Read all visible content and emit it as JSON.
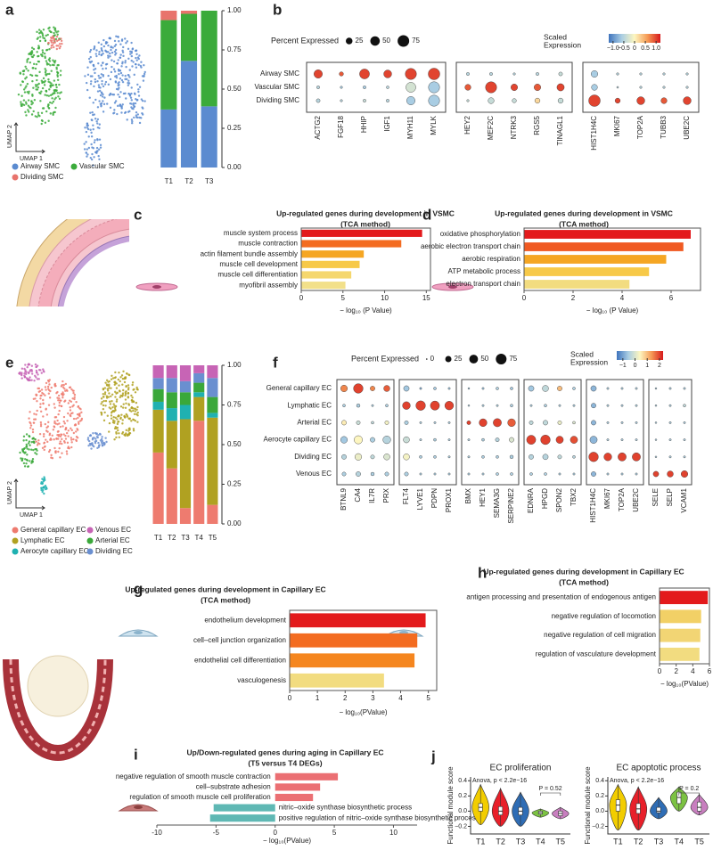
{
  "panel_labels": [
    "a",
    "b",
    "c",
    "d",
    "e",
    "f",
    "g",
    "h",
    "i",
    "j"
  ],
  "umaps": [
    {
      "xlabel": "UMAP 1",
      "ylabel": "UMAP 2",
      "legend": [
        {
          "name": "Airway SMC",
          "color": "#5b8bd0"
        },
        {
          "name": "Vascular SMC",
          "color": "#3bab3b"
        },
        {
          "name": "Dividing SMC",
          "color": "#e8736c"
        }
      ]
    },
    {
      "xlabel": "UMAP 1",
      "ylabel": "UMAP 2",
      "legend": [
        {
          "name": "General capillary EC",
          "color": "#ee7b6f"
        },
        {
          "name": "Venous EC",
          "color": "#c764b5"
        },
        {
          "name": "Lymphatic EC",
          "color": "#b0a121"
        },
        {
          "name": "Arterial EC",
          "color": "#3aa83a"
        },
        {
          "name": "Aerocyte capillary EC",
          "color": "#1fb1b1"
        },
        {
          "name": "Dividing EC",
          "color": "#6a8fd0"
        }
      ]
    }
  ],
  "chart_data": [
    {
      "type": "stacked_bar",
      "categories": [
        "T1",
        "T2",
        "T3"
      ],
      "series": [
        {
          "name": "Airway SMC",
          "color": "#5b8bd0",
          "values": [
            0.37,
            0.68,
            0.39
          ]
        },
        {
          "name": "Vascular SMC",
          "color": "#3bab3b",
          "values": [
            0.57,
            0.3,
            0.61
          ]
        },
        {
          "name": "Dividing SMC",
          "color": "#e8736c",
          "values": [
            0.06,
            0.02,
            0.0
          ]
        }
      ],
      "ylim": [
        0,
        1
      ],
      "yticks": [
        {
          "value": 0,
          "label": "0.00"
        },
        0.25,
        {
          "value": 0.5,
          "label": "0.50"
        },
        0.75,
        {
          "value": 1,
          "label": "1.00"
        }
      ]
    },
    {
      "type": "dotplot",
      "rows": [
        "Airway SMC",
        "Vascular SMC",
        "Dividing SMC"
      ],
      "gene_groups": [
        [
          "ACTG2",
          "FGF18",
          "HHIP",
          "IGF1",
          "MYH11",
          "MYLK"
        ],
        [
          "HEY2",
          "MEF2C",
          "NTRK3",
          "RGS5",
          "TINAGL1"
        ],
        [
          "HIST1H4C",
          "MKI67",
          "TOP2A",
          "TUBB3",
          "UBE2C"
        ]
      ],
      "pct": [
        [
          40,
          10,
          55,
          35,
          70,
          75,
          5,
          5,
          3,
          5,
          8,
          25,
          3,
          3,
          3,
          3
        ],
        [
          5,
          3,
          5,
          4,
          55,
          70,
          20,
          70,
          25,
          25,
          30,
          20,
          2,
          3,
          3,
          3
        ],
        [
          8,
          3,
          5,
          5,
          40,
          70,
          3,
          20,
          10,
          15,
          15,
          75,
          15,
          35,
          20,
          35
        ]
      ],
      "expr": [
        [
          1.0,
          0.9,
          1.0,
          1.0,
          1.0,
          1.0,
          -0.5,
          -0.5,
          -0.5,
          -0.5,
          -0.4,
          -0.6,
          -0.5,
          -0.5,
          -0.5,
          -0.5
        ],
        [
          -0.5,
          -0.6,
          -0.6,
          -0.5,
          -0.3,
          -0.6,
          0.9,
          1.0,
          1.0,
          0.9,
          1.0,
          -0.6,
          -0.5,
          -0.5,
          -0.5,
          -0.5
        ],
        [
          -0.5,
          -0.5,
          -0.4,
          -0.5,
          -0.6,
          -0.6,
          -0.4,
          -0.4,
          -0.4,
          0.2,
          -0.4,
          1.0,
          1.0,
          1.0,
          0.9,
          1.0
        ]
      ],
      "size_title": "Percent Expressed",
      "size_ticks": [
        25,
        50,
        75
      ],
      "color_title": [
        "Scaled",
        "Expression"
      ],
      "color_ticks": [
        {
          "value": -1,
          "label": "−1.0"
        },
        {
          "value": -0.5,
          "label": "−0.5"
        },
        0,
        0.5,
        {
          "value": 1,
          "label": "1.0"
        }
      ],
      "colorlim": [
        -1.2,
        1.2
      ],
      "colors": [
        "#3f74bd",
        "#a9cde3",
        "#fdf6c0",
        "#f59a55",
        "#d7191c"
      ]
    },
    {
      "type": "hbar",
      "title": [
        "Up-regulated genes during development in VSMC",
        "(TCA method)"
      ],
      "title_color": "#1f6db3",
      "terms": [
        "muscle system process",
        "muscle contraction",
        "actin filament bundle assembly",
        "muscle cell development",
        "muscle cell differentiation",
        "myofibril assembly"
      ],
      "values": [
        14.5,
        12,
        7.5,
        7,
        6,
        5.3
      ],
      "colors": [
        "#e31a1c",
        "#f36c21",
        "#f5a623",
        "#f7c948",
        "#f5d76e",
        "#f2e08a"
      ],
      "xlim": [
        0,
        15.5
      ],
      "xticks": [
        0,
        5,
        10,
        15
      ],
      "xlabel": "− log₁₀ (P Value)",
      "frame": true
    },
    {
      "type": "hbar",
      "title": [
        "Up-regulated genes during development in VSMC",
        "(TCA method)"
      ],
      "title_color": "#1f6db3",
      "terms": [
        "oxidative phosphorylation",
        "aerobic electron transport chain",
        "aerobic respiration",
        "ATP metabolic process",
        "electron transport chain"
      ],
      "values": [
        6.8,
        6.5,
        5.8,
        5.1,
        4.3
      ],
      "colors": [
        "#e31a1c",
        "#f05a22",
        "#f5a623",
        "#f7c948",
        "#f2dc80"
      ],
      "xlim": [
        0,
        7.2
      ],
      "xticks": [
        0,
        2,
        4,
        6
      ],
      "xlabel": "− log₁₀ (P Value)",
      "frame": true
    },
    {
      "type": "stacked_bar",
      "categories": [
        "T1",
        "T2",
        "T3",
        "T4",
        "T5"
      ],
      "series": [
        {
          "name": "General capillary EC",
          "color": "#ee7b6f",
          "values": [
            0.45,
            0.35,
            0.1,
            0.65,
            0.12
          ]
        },
        {
          "name": "Lymphatic EC",
          "color": "#b0a121",
          "values": [
            0.27,
            0.3,
            0.56,
            0.15,
            0.55
          ]
        },
        {
          "name": "Aerocyte capillary EC",
          "color": "#1fb1b1",
          "values": [
            0.05,
            0.08,
            0.09,
            0.03,
            0.03
          ]
        },
        {
          "name": "Arterial EC",
          "color": "#3aa83a",
          "values": [
            0.08,
            0.1,
            0.08,
            0.06,
            0.1
          ]
        },
        {
          "name": "Dividing EC",
          "color": "#6a8fd0",
          "values": [
            0.07,
            0.09,
            0.07,
            0.06,
            0.12
          ]
        },
        {
          "name": "Venous EC",
          "color": "#c764b5",
          "values": [
            0.08,
            0.08,
            0.1,
            0.05,
            0.08
          ]
        }
      ],
      "ylim": [
        0,
        1
      ],
      "yticks": [
        {
          "value": 0,
          "label": "0.00"
        },
        0.25,
        {
          "value": 0.5,
          "label": "0.50"
        },
        0.75,
        {
          "value": 1,
          "label": "1.00"
        }
      ]
    },
    {
      "type": "dotplot",
      "rows": [
        "General capillary EC",
        "Lymphatic EC",
        "Arterial EC",
        "Aerocyte capillary EC",
        "Dividing EC",
        "Venous EC"
      ],
      "gene_groups": [
        [
          "BTNL9",
          "CA4",
          "IL7R",
          "PRX"
        ],
        [
          "FLT4",
          "LYVE1",
          "PDPN",
          "PROX1"
        ],
        [
          "BMX",
          "HEY1",
          "SEMA3G",
          "SERPINE2"
        ],
        [
          "EDNRA",
          "HPGD",
          "SPON2",
          "TBX2"
        ],
        [
          "HIST1H4C",
          "MKI67",
          "TOP2A",
          "UBE2C"
        ],
        [
          "SELE",
          "SELP",
          "VCAM1"
        ]
      ],
      "pct": [
        [
          30,
          60,
          15,
          25,
          20,
          3,
          5,
          3,
          2,
          3,
          5,
          5,
          20,
          25,
          15,
          5,
          20,
          3,
          3,
          3,
          2,
          3,
          3
        ],
        [
          5,
          8,
          3,
          5,
          40,
          60,
          55,
          50,
          2,
          3,
          3,
          5,
          3,
          5,
          3,
          3,
          15,
          3,
          3,
          3,
          2,
          3,
          5
        ],
        [
          15,
          10,
          5,
          10,
          10,
          3,
          3,
          3,
          10,
          40,
          45,
          40,
          10,
          15,
          10,
          5,
          15,
          3,
          3,
          3,
          2,
          3,
          3
        ],
        [
          30,
          45,
          15,
          40,
          25,
          3,
          5,
          3,
          3,
          5,
          10,
          15,
          55,
          60,
          35,
          35,
          35,
          3,
          3,
          3,
          2,
          3,
          3
        ],
        [
          15,
          30,
          10,
          25,
          25,
          5,
          5,
          3,
          3,
          5,
          5,
          8,
          15,
          20,
          10,
          5,
          60,
          40,
          45,
          45,
          2,
          3,
          3
        ],
        [
          10,
          15,
          8,
          10,
          10,
          3,
          3,
          3,
          3,
          3,
          5,
          5,
          5,
          5,
          3,
          3,
          15,
          3,
          3,
          3,
          20,
          25,
          30
        ]
      ],
      "expr": [
        [
          1.5,
          2,
          1.5,
          1.8,
          -0.6,
          -0.8,
          -0.6,
          -0.6,
          -0.6,
          -0.6,
          -0.5,
          -0.6,
          -0.6,
          -0.3,
          1.0,
          -0.5,
          -0.8,
          -0.5,
          -0.5,
          -0.5,
          -0.5,
          -0.5,
          -0.5
        ],
        [
          -0.5,
          -0.5,
          -0.5,
          -0.5,
          2,
          2,
          2,
          2,
          -0.5,
          -0.5,
          -0.5,
          -0.5,
          -0.5,
          -0.5,
          -0.5,
          -0.5,
          -0.8,
          -0.5,
          -0.5,
          -0.5,
          -0.5,
          -0.5,
          -0.3
        ],
        [
          0.5,
          -0.2,
          -0.3,
          0.3,
          -0.5,
          -0.5,
          -0.5,
          -0.5,
          2,
          2,
          2,
          1.8,
          -0.3,
          -0.3,
          0.2,
          0,
          -0.8,
          -0.5,
          -0.5,
          -0.5,
          -0.5,
          -0.5,
          -0.5
        ],
        [
          -0.6,
          0.4,
          -0.5,
          -0.4,
          -0.2,
          -0.5,
          -0.5,
          -0.5,
          -0.5,
          -0.5,
          -0.4,
          0,
          2,
          2,
          2,
          1.9,
          -0.8,
          -0.5,
          -0.5,
          -0.5,
          -0.5,
          -0.5,
          -0.5
        ],
        [
          -0.4,
          0.2,
          -0.3,
          0,
          0.3,
          -0.5,
          -0.5,
          -0.5,
          -0.5,
          -0.5,
          -0.5,
          -0.5,
          -0.4,
          -0.4,
          -0.3,
          -0.4,
          2,
          2,
          2,
          2,
          -0.5,
          -0.5,
          -0.5
        ],
        [
          -0.5,
          -0.4,
          -0.5,
          -0.5,
          -0.5,
          -0.5,
          -0.5,
          -0.5,
          -0.5,
          -0.5,
          -0.5,
          -0.5,
          -0.5,
          -0.5,
          -0.5,
          -0.5,
          -0.8,
          -0.5,
          -0.5,
          -0.5,
          2,
          2,
          2
        ]
      ],
      "size_title": "Percent Expressed",
      "size_ticks": [
        0,
        25,
        50,
        75
      ],
      "color_title": [
        "Scaled",
        "Expression"
      ],
      "color_ticks": [
        {
          "value": -1,
          "label": "−1"
        },
        0,
        1,
        2
      ],
      "colorlim": [
        -1.5,
        2.3
      ],
      "colors": [
        "#3f74bd",
        "#a9cde3",
        "#fdf6c0",
        "#f59a55",
        "#d7191c"
      ]
    },
    {
      "type": "hbar",
      "title": [
        "Up-regulated genes during development in Capillary EC",
        "(TCA method)"
      ],
      "title_color": "#1f6db3",
      "terms": [
        "endothelium development",
        "cell–cell junction organization",
        "endothelial cell differentiation",
        "vasculogenesis"
      ],
      "values": [
        4.9,
        4.6,
        4.5,
        3.4
      ],
      "colors": [
        "#e31a1c",
        "#f36c21",
        "#f5861f",
        "#f2dc80"
      ],
      "xlim": [
        0,
        5.3
      ],
      "xticks": [
        0,
        1,
        2,
        3,
        4,
        5
      ],
      "xlabel": "− log₁₀(PValue)",
      "frame": true
    },
    {
      "type": "hbar",
      "title": [
        "Up-regulated genes during development in Capillary EC",
        "(TCA method)"
      ],
      "title_color": "#1f6db3",
      "terms": [
        "antigen processing and presentation of endogenous antigen",
        "negative regulation of locomotion",
        "negative regulation of cell migration",
        "regulation of vasculature development"
      ],
      "values": [
        5.8,
        5.0,
        4.9,
        4.8
      ],
      "colors": [
        "#e31a1c",
        "#f2d066",
        "#f2d574",
        "#f2dc80"
      ],
      "xlim": [
        0,
        6
      ],
      "xticks": [
        0,
        2,
        4,
        6
      ],
      "xlabel": "− log₁₀(PValue)",
      "frame": true
    },
    {
      "type": "hbar",
      "title": [
        "Up/Down-regulated genes during aging in Capillary EC",
        "(T5 versus T4 DEGs)"
      ],
      "title_color": "#a0785a",
      "terms": [
        "negative regulation of smooth muscle contraction",
        "cell–substrate adhesion",
        "regulation of smooth muscle cell proliferation",
        "nitric–oxide synthase biosynthetic process",
        "positive regulation of nitric–oxide synthase biosynthetic process"
      ],
      "values": [
        5.3,
        3.8,
        3.2,
        -5.2,
        -5.5
      ],
      "colors": [
        "#eb6f73",
        "#eb6f73",
        "#eb6f73",
        "#5fb8b4",
        "#5fb8b4"
      ],
      "xlim": [
        -10,
        12
      ],
      "xticks": [
        -10,
        -5,
        0,
        5,
        10
      ],
      "xlabel": "− log₁₀(PValue)",
      "frame": false
    },
    {
      "type": "violin",
      "title": "EC proliferation",
      "annotation": "Anova, p < 2.2e−16",
      "comparison_label": "P = 0.52",
      "ylabel": "Functional module score",
      "categories": [
        "T1",
        "T2",
        "T3",
        "T4",
        "T5"
      ],
      "colors": [
        "#f2cd00",
        "#e8202a",
        "#2f6db5",
        "#7cc242",
        "#c87fbf"
      ],
      "min": [
        -0.18,
        -0.2,
        -0.2,
        -0.08,
        -0.1
      ],
      "q1": [
        0.0,
        -0.05,
        -0.05,
        -0.04,
        -0.06
      ],
      "median": [
        0.05,
        0.0,
        0.0,
        -0.02,
        -0.03
      ],
      "q3": [
        0.1,
        0.06,
        0.05,
        0.0,
        0.0
      ],
      "max": [
        0.35,
        0.3,
        0.25,
        0.03,
        0.05
      ],
      "ylim": [
        -0.3,
        0.45
      ],
      "yticks": [
        {
          "value": -0.2,
          "label": "−0.2"
        },
        {
          "value": 0,
          "label": "0.0"
        },
        0.2,
        0.4
      ]
    },
    {
      "type": "violin",
      "title": "EC apoptotic process",
      "annotation": "Anova, p < 2.2e−16",
      "comparison_label": "P = 0.2",
      "ylabel": "Functional module score",
      "categories": [
        "T1",
        "T2",
        "T3",
        "T4",
        "T5"
      ],
      "colors": [
        "#f2cd00",
        "#e8202a",
        "#2f6db5",
        "#7cc242",
        "#c87fbf"
      ],
      "min": [
        -0.25,
        -0.25,
        -0.1,
        0.0,
        -0.05
      ],
      "q1": [
        0.0,
        -0.03,
        -0.02,
        0.1,
        0.0
      ],
      "median": [
        0.08,
        0.03,
        0.0,
        0.18,
        0.05
      ],
      "q3": [
        0.15,
        0.1,
        0.05,
        0.25,
        0.12
      ],
      "max": [
        0.35,
        0.32,
        0.18,
        0.32,
        0.22
      ],
      "ylim": [
        -0.3,
        0.45
      ],
      "yticks": [
        {
          "value": -0.2,
          "label": "−0.2"
        },
        {
          "value": 0,
          "label": "0.0"
        },
        0.2,
        0.4
      ]
    }
  ]
}
